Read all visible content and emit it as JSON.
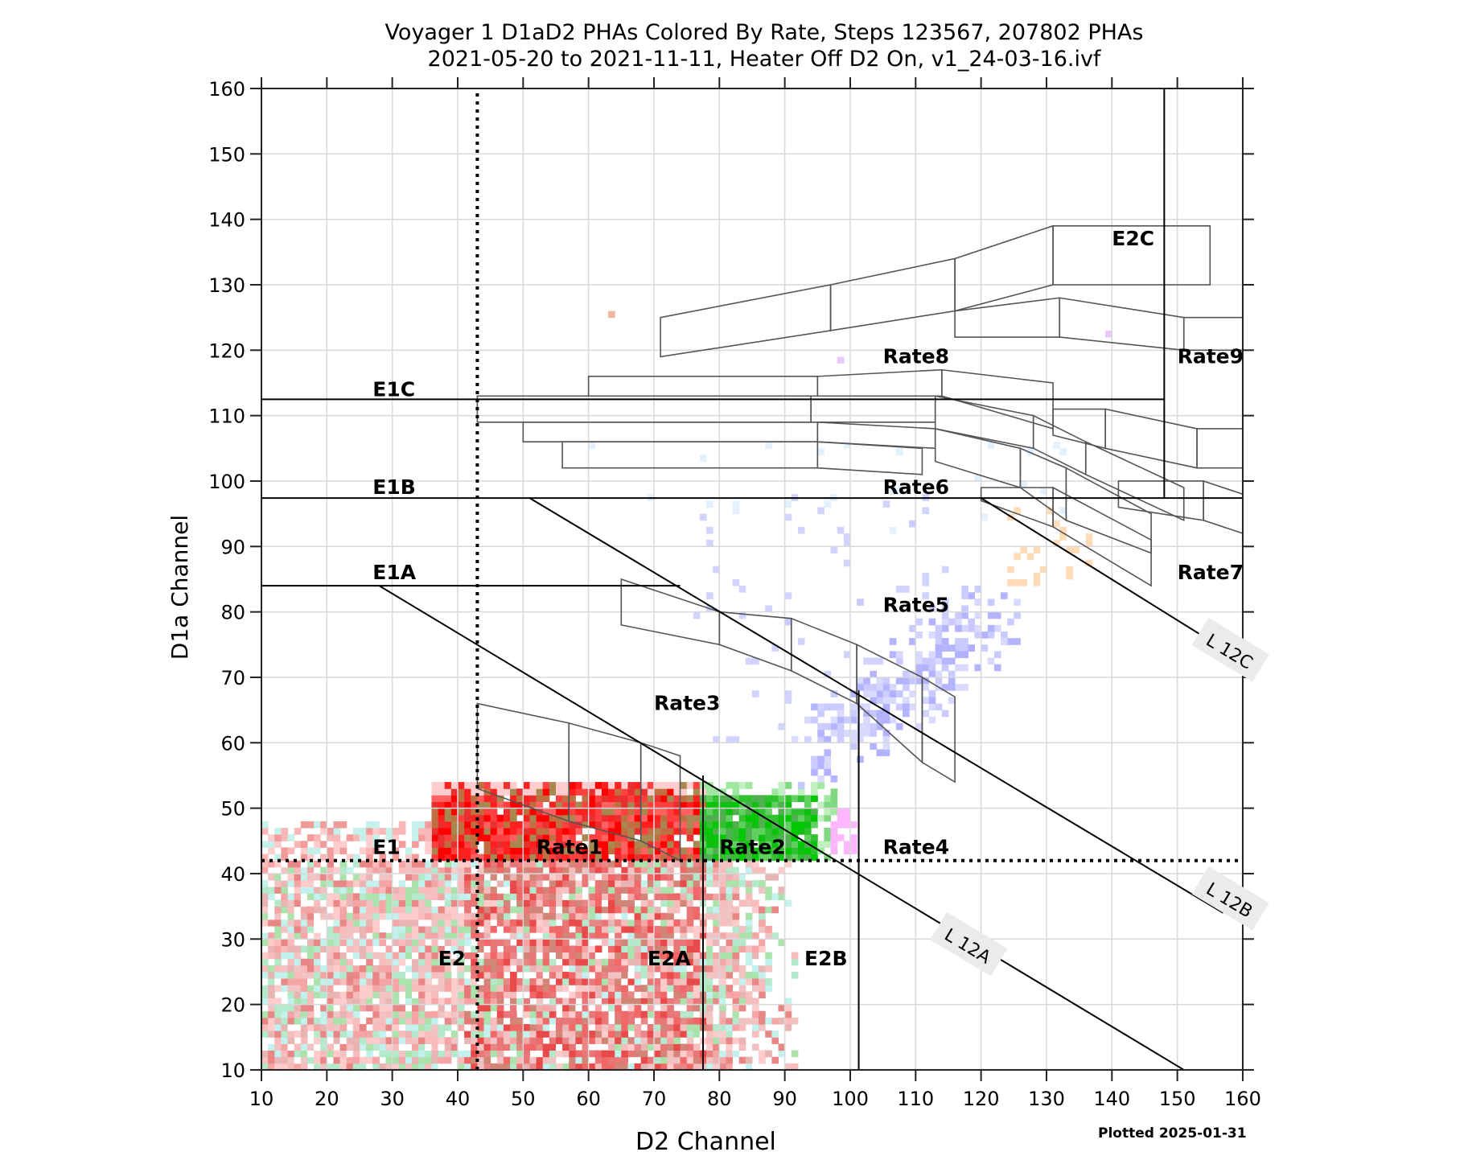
{
  "chart_data": {
    "type": "heatmap",
    "title": "Voyager 1 D1aD2 PHAs Colored By Rate, Steps 123567, 207802 PHAs",
    "subtitle": "2021-05-20 to 2021-11-11, Heater Off D2 On, v1_24-03-16.ivf",
    "xlabel": "D2 Channel",
    "ylabel": "D1a Channel",
    "xlim": [
      10,
      160
    ],
    "ylim": [
      10,
      160
    ],
    "xticks": [
      10,
      20,
      30,
      40,
      50,
      60,
      70,
      80,
      90,
      100,
      110,
      120,
      130,
      140,
      150,
      160
    ],
    "yticks": [
      10,
      20,
      30,
      40,
      50,
      60,
      70,
      80,
      90,
      100,
      110,
      120,
      130,
      140,
      150,
      160
    ],
    "grid": true,
    "footer": "Plotted 2025-01-31",
    "series_colors": {
      "Rate1": "#ff0000",
      "Rate2": "#00c800",
      "Rate3": "#a0a0ff",
      "Rate4": "#ffb0ff",
      "Rate5": "#c8c8ff",
      "Rate6": "#e0f0ff",
      "Rate7": "#ffd8b0",
      "E2/E2A": "#ffb0b0",
      "E2B": "#c0f0e8"
    },
    "region_labels": [
      {
        "text": "E1",
        "x": 27,
        "y": 43
      },
      {
        "text": "Rate1",
        "x": 52,
        "y": 43
      },
      {
        "text": "Rate2",
        "x": 80,
        "y": 43
      },
      {
        "text": "Rate4",
        "x": 105,
        "y": 43
      },
      {
        "text": "E1A",
        "x": 27,
        "y": 85
      },
      {
        "text": "E1B",
        "x": 27,
        "y": 98
      },
      {
        "text": "E1C",
        "x": 27,
        "y": 113
      },
      {
        "text": "Rate3",
        "x": 70,
        "y": 65
      },
      {
        "text": "Rate5",
        "x": 105,
        "y": 80
      },
      {
        "text": "Rate6",
        "x": 105,
        "y": 98
      },
      {
        "text": "Rate7",
        "x": 150,
        "y": 85
      },
      {
        "text": "Rate8",
        "x": 105,
        "y": 118
      },
      {
        "text": "Rate9",
        "x": 150,
        "y": 118
      },
      {
        "text": "E2C",
        "x": 140,
        "y": 136
      },
      {
        "text": "E2",
        "x": 37,
        "y": 26
      },
      {
        "text": "E2A",
        "x": 69,
        "y": 26
      },
      {
        "text": "E2B",
        "x": 93,
        "y": 26
      }
    ],
    "line_labels": [
      {
        "text": "L 12A",
        "x": 118,
        "y": 29
      },
      {
        "text": "L 12B",
        "x": 158,
        "y": 36
      },
      {
        "text": "L 12C",
        "x": 158,
        "y": 74
      }
    ],
    "threshold_lines": {
      "E1_horizontal_dotted": 42,
      "E2_vertical_dotted": 43,
      "E2A_vertical": 77.5,
      "E2B_vertical": 101.3,
      "E2C_vertical": 148,
      "E1A": 84,
      "E1B": 97.4,
      "E1C": 112.5
    },
    "L12_lines": [
      {
        "name": "L 12A",
        "from": [
          28,
          84
        ],
        "to": [
          151,
          10
        ]
      },
      {
        "name": "L 12B",
        "from": [
          51,
          97.4
        ],
        "to": [
          157,
          34
        ]
      },
      {
        "name": "L 12C",
        "from": [
          120,
          97.4
        ],
        "to": [
          156,
          75
        ]
      }
    ],
    "density_summary": [
      {
        "rate": "Rate1",
        "x_range": [
          38,
          78
        ],
        "y_range": [
          42,
          53
        ],
        "color": "#ff0000"
      },
      {
        "rate": "Rate2",
        "x_range": [
          78,
          98
        ],
        "y_range": [
          42,
          53
        ],
        "color": "#00c800"
      },
      {
        "rate": "E2/E2A low",
        "x_range": [
          10,
          90
        ],
        "y_range": [
          10,
          42
        ],
        "color": "#ffb0b0"
      },
      {
        "rate": "Rate5",
        "x_range": [
          90,
          120
        ],
        "y_range": [
          58,
          90
        ],
        "color": "#c8c8ff"
      }
    ]
  }
}
